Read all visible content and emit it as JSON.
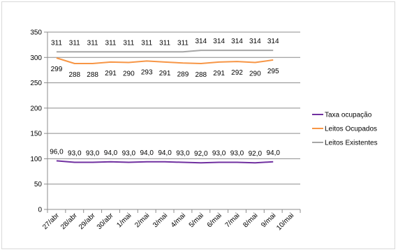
{
  "chart_data": {
    "type": "line",
    "title": "",
    "xlabel": "",
    "ylabel": "",
    "ylim": [
      0,
      350
    ],
    "y_ticks": [
      "0",
      "50",
      "100",
      "150",
      "200",
      "250",
      "300",
      "350"
    ],
    "grid": "horizontal",
    "legend_position": "right",
    "categories": [
      "27/abr",
      "28/abr",
      "29/abr",
      "30/abr",
      "1/mai",
      "2/mai",
      "3/mai",
      "4/mai",
      "5/mai",
      "6/mai",
      "7/mai",
      "8/mai",
      "9/mai",
      "10/mai"
    ],
    "series": [
      {
        "name": "Taxa ocupação",
        "color": "#7030a0",
        "values": [
          96.0,
          93.0,
          93.0,
          94.0,
          93.0,
          94.0,
          94.0,
          93.0,
          92.0,
          93.0,
          93.0,
          92.0,
          94.0,
          null
        ],
        "labels": [
          "96,0",
          "93,0",
          "93,0",
          "94,0",
          "93,0",
          "94,0",
          "94,0",
          "93,0",
          "92,0",
          "93,0",
          "93,0",
          "92,0",
          "94,0",
          ""
        ]
      },
      {
        "name": "Leitos Ocupados",
        "color": "#f79646",
        "values": [
          299,
          288,
          288,
          291,
          290,
          293,
          291,
          289,
          288,
          291,
          292,
          290,
          295,
          null
        ],
        "labels": [
          "299",
          "288",
          "288",
          "291",
          "290",
          "293",
          "291",
          "289",
          "288",
          "291",
          "292",
          "290",
          "295",
          ""
        ]
      },
      {
        "name": "Leitos Existentes",
        "color": "#a6a6a6",
        "values": [
          311,
          311,
          311,
          311,
          311,
          311,
          311,
          311,
          314,
          314,
          314,
          314,
          314,
          null
        ],
        "labels": [
          "311",
          "311",
          "311",
          "311",
          "311",
          "311",
          "311",
          "311",
          "314",
          "314",
          "314",
          "314",
          "314",
          ""
        ]
      }
    ]
  }
}
